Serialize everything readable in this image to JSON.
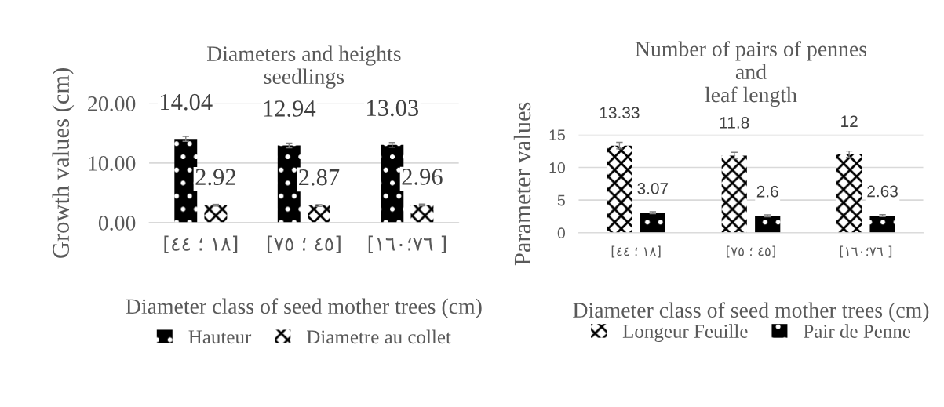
{
  "chart_data": [
    {
      "type": "bar",
      "title": "Diameters and heights\nseedlings",
      "xlabel": "Diameter class of seed mother trees (cm)",
      "ylabel": "Growth values (cm)",
      "categories": [
        "[٤٤ ؛ ١٨]",
        "[٧٥ ؛ ٤٥]",
        "[١٦٠؛٧٦ ]"
      ],
      "series": [
        {
          "name": "Hauteur",
          "color": "#000000",
          "values": [
            14.04,
            12.94,
            13.03
          ],
          "errors": [
            0.4,
            0.4,
            0.4
          ],
          "value_labels": [
            "14.04",
            "12.94",
            "13.03"
          ]
        },
        {
          "name": "Diametre au collet",
          "color": "#000000",
          "values": [
            2.92,
            2.87,
            2.96
          ],
          "errors": [
            0.15,
            0.15,
            0.15
          ],
          "value_labels": [
            "2.92",
            "2.87",
            "2.96"
          ]
        }
      ],
      "ylim": [
        0,
        20
      ],
      "yticks": [
        {
          "value": 0,
          "label": "0.00"
        },
        {
          "value": 10,
          "label": "10.00"
        },
        {
          "value": 20,
          "label": "20.00"
        }
      ],
      "grid": "y",
      "legend": "bottom"
    },
    {
      "type": "bar",
      "title": "Number of pairs of pennes\nand\nleaf length",
      "xlabel": "Diameter class of seed mother trees (cm)",
      "ylabel": "Parameter values",
      "categories": [
        "[٤٤ ؛ ١٨]",
        "[٧٥ ؛ ٤٥]",
        "[١٦٠؛٧٦ ]"
      ],
      "series": [
        {
          "name": "Longeur Feuille",
          "color": "#000000",
          "values": [
            13.33,
            11.8,
            12
          ],
          "errors": [
            0.5,
            0.5,
            0.5
          ],
          "value_labels": [
            "13.33",
            "11.8",
            "12"
          ]
        },
        {
          "name": "Pair de Penne",
          "color": "#000000",
          "values": [
            3.07,
            2.6,
            2.63
          ],
          "errors": [
            0.15,
            0.15,
            0.15
          ],
          "value_labels": [
            "3.07",
            "2.6",
            "2.63"
          ]
        }
      ],
      "ylim": [
        0,
        15
      ],
      "yticks": [
        0,
        5,
        10,
        15
      ],
      "grid": "y",
      "legend": "bottom"
    }
  ]
}
